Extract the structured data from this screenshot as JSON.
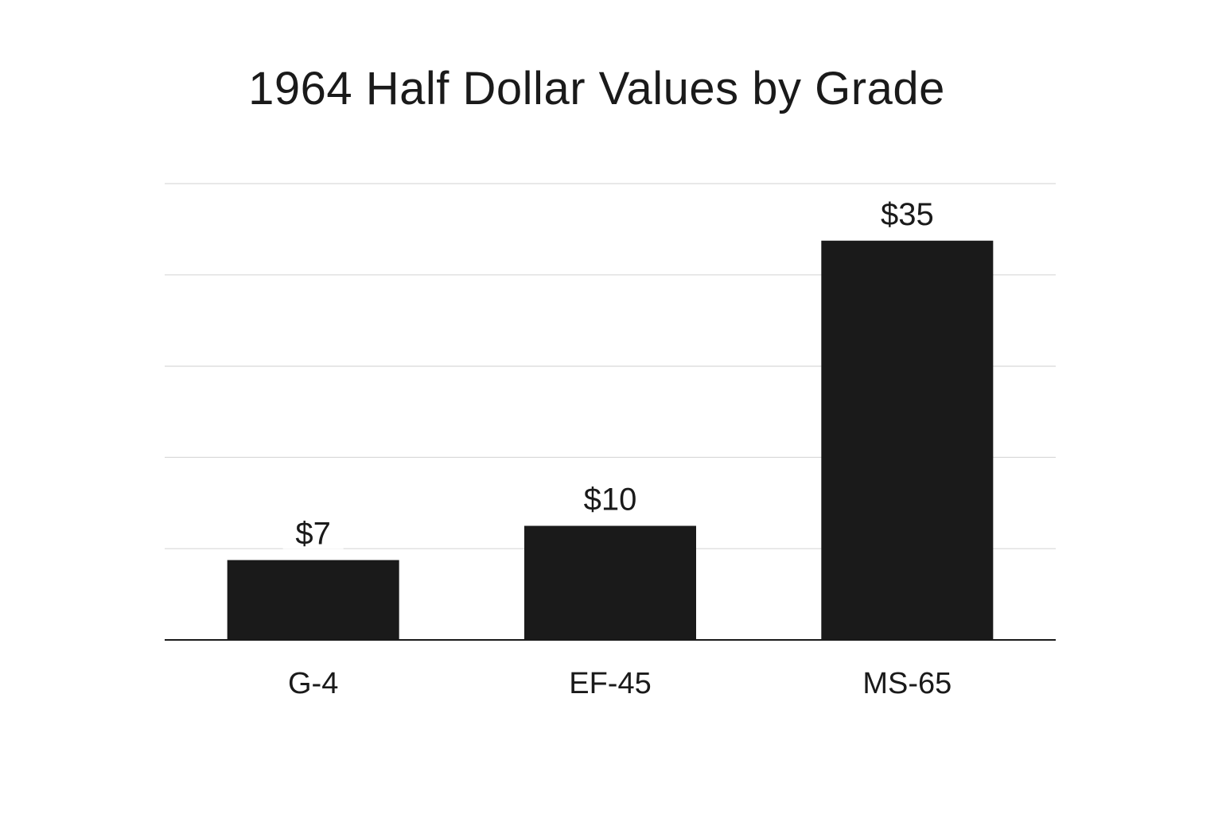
{
  "chart_data": {
    "type": "bar",
    "title": "1964 Half Dollar Values by Grade",
    "categories": [
      "G-4",
      "EF-45",
      "MS-65"
    ],
    "values": [
      7,
      10,
      35
    ],
    "data_labels": [
      "$7",
      "$10",
      "$35"
    ],
    "xlabel": "",
    "ylabel": "",
    "ylim": [
      0,
      40
    ],
    "grid": true,
    "bar_color": "#1a1a1a",
    "grid_color": "#d9d9d9"
  }
}
